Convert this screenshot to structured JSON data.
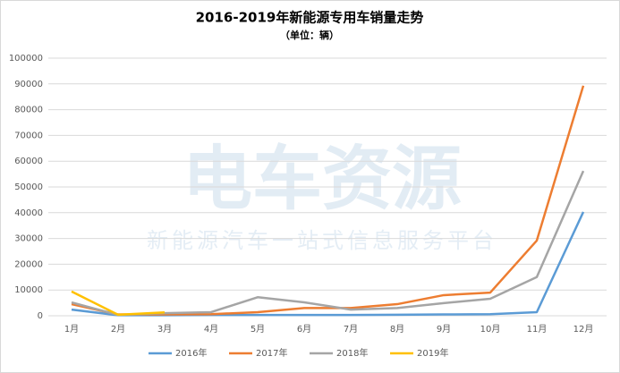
{
  "chart_data": {
    "type": "line",
    "title": "2016-2019年新能源专用车销量走势",
    "subtitle": "（单位：辆）",
    "watermark": [
      "电车资源",
      "新能源汽车一站式信息服务平台"
    ],
    "categories": [
      "1月",
      "2月",
      "3月",
      "4月",
      "5月",
      "6月",
      "7月",
      "8月",
      "9月",
      "10月",
      "11月",
      "12月"
    ],
    "series": [
      {
        "name": "2016年",
        "color": "#5b9bd5",
        "values": [
          2400,
          200,
          200,
          300,
          300,
          300,
          300,
          400,
          500,
          600,
          1400,
          40300
        ]
      },
      {
        "name": "2017年",
        "color": "#ed7d31",
        "values": [
          4500,
          500,
          500,
          600,
          1400,
          3000,
          3000,
          4500,
          8000,
          9000,
          29200,
          89300
        ]
      },
      {
        "name": "2018年",
        "color": "#a5a5a5",
        "values": [
          5200,
          300,
          1000,
          1400,
          7200,
          5200,
          2400,
          3000,
          4900,
          6600,
          15000,
          56200
        ]
      },
      {
        "name": "2019年",
        "color": "#ffc000",
        "values": [
          9400,
          400,
          1300,
          null,
          null,
          null,
          null,
          null,
          null,
          null,
          null,
          null
        ]
      }
    ],
    "ylim": [
      0,
      100000
    ],
    "yticks": [
      0,
      10000,
      20000,
      30000,
      40000,
      50000,
      60000,
      70000,
      80000,
      90000,
      100000
    ],
    "grid": true,
    "legend": "bottom"
  }
}
